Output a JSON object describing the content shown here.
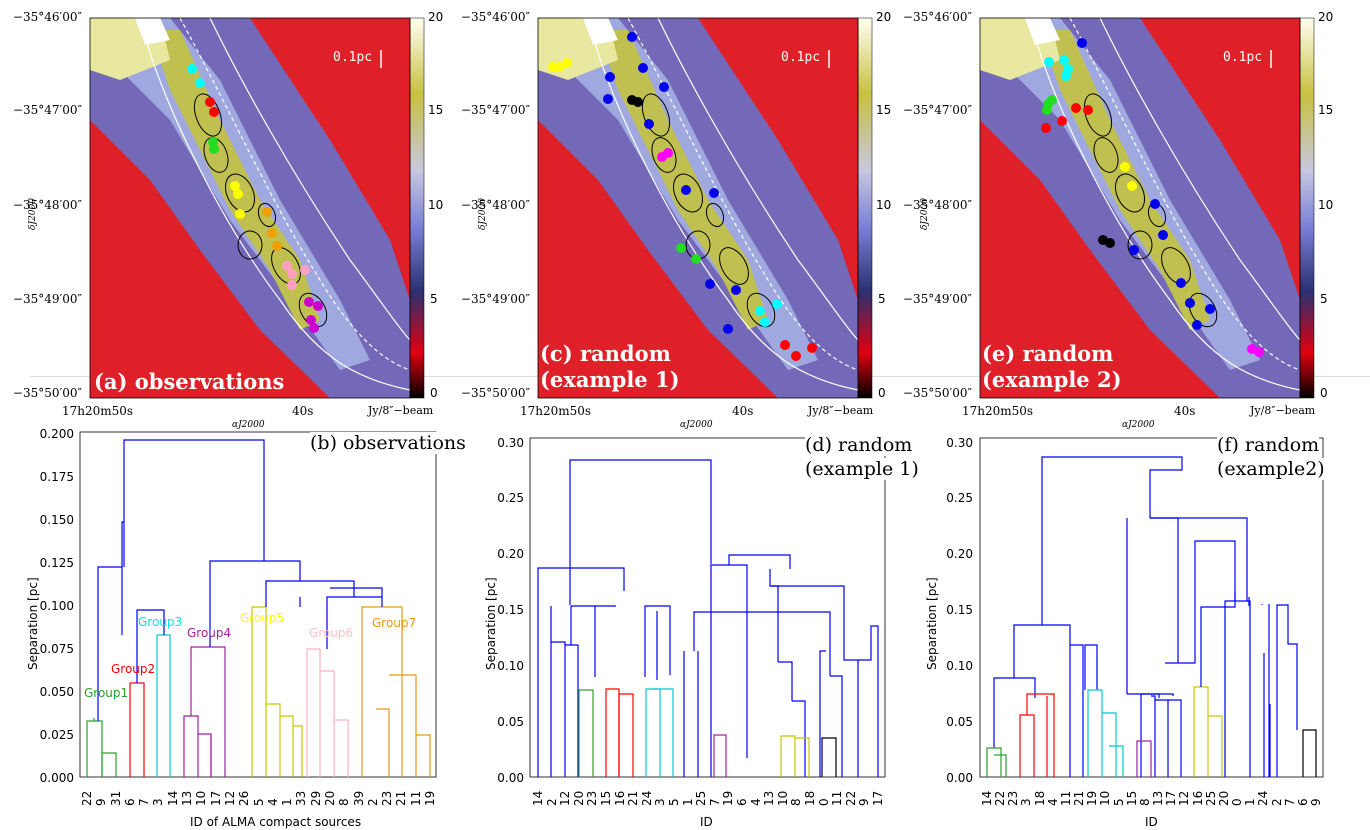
{
  "maps": [
    {
      "id": "a",
      "label_lines": [
        "(a) observations"
      ],
      "scale": "0.1pc",
      "yticks": [
        "−35°46′00″",
        "−35°47′00″",
        "−35°48′00″",
        "−35°49′00″",
        "−35°50′00″"
      ],
      "xticks": [
        "17h20m50s",
        "40s"
      ],
      "xaxis": "αJ2000",
      "yaxis": "δJ2000",
      "cbar": [
        "20",
        "15",
        "10",
        "5",
        "0"
      ],
      "cbar_unit": "Jy/8″−beam"
    },
    {
      "id": "c",
      "label_lines": [
        "(c) random",
        "(example 1)"
      ],
      "scale": "0.1pc",
      "yticks": [
        "−35°46′00″",
        "−35°47′00″",
        "−35°48′00″",
        "−35°49′00″",
        "−35°50′00″"
      ],
      "xticks": [
        "17h20m50s",
        "40s"
      ],
      "xaxis": "αJ2000",
      "yaxis": "δJ2000",
      "cbar": [
        "20",
        "15",
        "10",
        "5",
        "0"
      ],
      "cbar_unit": "Jy/8″−beam"
    },
    {
      "id": "e",
      "label_lines": [
        "(e) random",
        "(example 2)"
      ],
      "scale": "0.1pc",
      "yticks": [
        "−35°46′00″",
        "−35°47′00″",
        "−35°48′00″",
        "−35°49′00″",
        "−35°50′00″"
      ],
      "xticks": [
        "17h20m50s",
        "40s"
      ],
      "xaxis": "αJ2000",
      "yaxis": "δJ2000",
      "cbar": [
        "20",
        "15",
        "10",
        "5",
        "0"
      ],
      "cbar_unit": "Jy/8″−beam"
    }
  ],
  "dendrograms": [
    {
      "id": "b",
      "title_lines": [
        "(b) observations"
      ],
      "ylabel": "Separation [pc]",
      "xlabel": "ID of ALMA compact sources",
      "yticks": [
        "0.000",
        "0.025",
        "0.050",
        "0.075",
        "0.100",
        "0.125",
        "0.150",
        "0.175",
        "0.200"
      ],
      "ids": [
        "22",
        "9",
        "31",
        "6",
        "7",
        "3",
        "14",
        "13",
        "10",
        "17",
        "12",
        "26",
        "5",
        "4",
        "1",
        "33",
        "29",
        "20",
        "8",
        "39",
        "2",
        "23",
        "21",
        "11",
        "19"
      ],
      "groups": [
        {
          "name": "Group1",
          "color": "#2ca02c"
        },
        {
          "name": "Group2",
          "color": "#ff0000"
        },
        {
          "name": "Group3",
          "color": "#00e5ee"
        },
        {
          "name": "Group4",
          "color": "#a020a0"
        },
        {
          "name": "Group5",
          "color": "#ffff00"
        },
        {
          "name": "Group6",
          "color": "#ffc0cb"
        },
        {
          "name": "Group7",
          "color": "#e69a10"
        }
      ]
    },
    {
      "id": "d",
      "title_lines": [
        "(d) random",
        "(example 1)"
      ],
      "ylabel": "Separation [pc]",
      "xlabel": "ID",
      "yticks": [
        "0.00",
        "0.05",
        "0.10",
        "0.15",
        "0.20",
        "0.25",
        "0.30"
      ],
      "ids": [
        "14",
        "2",
        "12",
        "20",
        "23",
        "15",
        "16",
        "21",
        "24",
        "3",
        "5",
        "1",
        "25",
        "7",
        "19",
        "6",
        "4",
        "13",
        "10",
        "8",
        "18",
        "0",
        "11",
        "22",
        "9",
        "17"
      ],
      "groups": []
    },
    {
      "id": "f",
      "title_lines": [
        "(f) random",
        "(example2)"
      ],
      "ylabel": "Separation [pc]",
      "xlabel": "ID",
      "yticks": [
        "0.00",
        "0.05",
        "0.10",
        "0.15",
        "0.20",
        "0.25",
        "0.30"
      ],
      "ids": [
        "14",
        "22",
        "23",
        "3",
        "18",
        "4",
        "11",
        "21",
        "19",
        "10",
        "5",
        "15",
        "8",
        "13",
        "17",
        "12",
        "16",
        "25",
        "20",
        "0",
        "1",
        "24",
        "2",
        "7",
        "6",
        "9"
      ],
      "groups": []
    }
  ],
  "colors": {
    "link": "#0000ff",
    "map_red": "#e81020",
    "map_blue": "#5050c0",
    "map_yellow": "#c8c840"
  }
}
